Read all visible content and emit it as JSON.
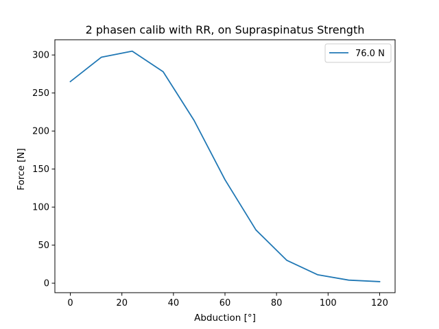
{
  "chart_data": {
    "type": "line",
    "title": "2 phasen calib with RR, on Supraspinatus Strength",
    "xlabel": "Abduction [°]",
    "ylabel": "Force [N]",
    "xlim": [
      -6,
      126
    ],
    "ylim": [
      -12.5,
      320
    ],
    "xticks": [
      0,
      20,
      40,
      60,
      80,
      100,
      120
    ],
    "yticks": [
      0,
      50,
      100,
      150,
      200,
      250,
      300
    ],
    "grid": false,
    "legend_position": "upper right",
    "series": [
      {
        "name": "76.0 N",
        "color": "#1f77b4",
        "x": [
          0,
          12,
          24,
          36,
          48,
          60,
          72,
          84,
          96,
          108,
          120
        ],
        "y": [
          265,
          297,
          305,
          278,
          214,
          136,
          70,
          30,
          11,
          4,
          2
        ]
      }
    ]
  }
}
